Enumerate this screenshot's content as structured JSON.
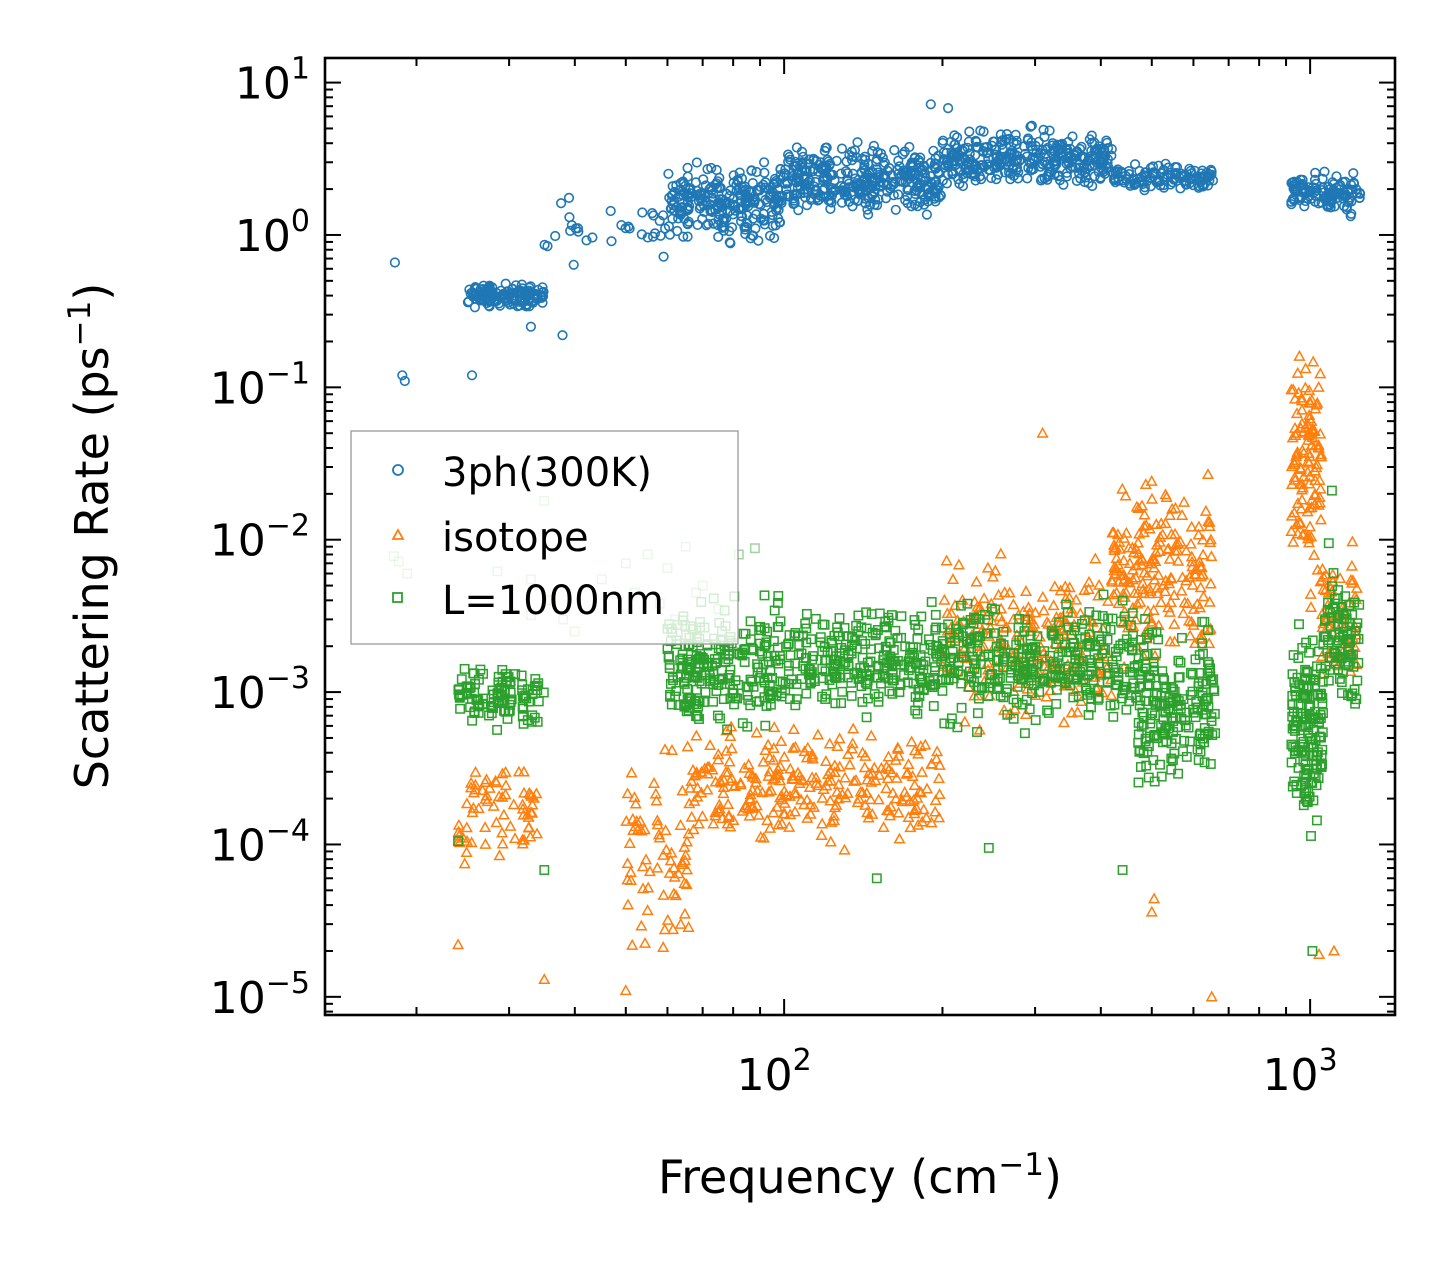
{
  "chart_data": {
    "type": "scatter",
    "title": "",
    "xlabel": "Frequency (cm",
    "xlabel_sup": "−1",
    "xlabel_end": ")",
    "ylabel": "Scattering Rate (ps",
    "ylabel_sup": "−1",
    "ylabel_end": ")",
    "xscale": "log",
    "yscale": "log",
    "xlim": [
      13.4,
      1450
    ],
    "ylim": [
      7.6e-06,
      14.5
    ],
    "x_ticks": [
      {
        "value": 100,
        "base": "10",
        "exp": "2"
      },
      {
        "value": 1000,
        "base": "10",
        "exp": "3"
      }
    ],
    "y_ticks": [
      {
        "value": 10,
        "base": "10",
        "exp": "1"
      },
      {
        "value": 1,
        "base": "10",
        "exp": "0"
      },
      {
        "value": 0.1,
        "base": "10",
        "exp": "−1"
      },
      {
        "value": 0.01,
        "base": "10",
        "exp": "−2"
      },
      {
        "value": 0.001,
        "base": "10",
        "exp": "−3"
      },
      {
        "value": 0.0001,
        "base": "10",
        "exp": "−4"
      },
      {
        "value": 1e-05,
        "base": "10",
        "exp": "−5"
      }
    ],
    "legend_position": "center-left",
    "series": [
      {
        "name": "3ph(300K)",
        "marker": "circle",
        "color": "#1f77b4",
        "clusters": [
          {
            "x": [
              25,
              35
            ],
            "logy": [
              -0.5,
              -0.3
            ],
            "n": 150
          },
          {
            "x": [
              35,
              60
            ],
            "logy": [
              -0.25,
              0.3
            ],
            "n": 30
          },
          {
            "x": [
              60,
              100
            ],
            "logy": [
              -0.1,
              0.55
            ],
            "n": 260
          },
          {
            "x": [
              100,
              200
            ],
            "logy": [
              0.05,
              0.65
            ],
            "n": 360
          },
          {
            "x": [
              200,
              420
            ],
            "logy": [
              0.25,
              0.75
            ],
            "n": 340
          },
          {
            "x": [
              420,
              660
            ],
            "logy": [
              0.25,
              0.5
            ],
            "n": 120
          },
          {
            "x": [
              920,
              1250
            ],
            "logy": [
              0.1,
              0.45
            ],
            "n": 120
          }
        ],
        "points": [
          [
            18.2,
            0.66
          ],
          [
            18.8,
            0.12
          ],
          [
            19,
            0.11
          ],
          [
            25.5,
            0.12
          ],
          [
            37.9,
            0.22
          ],
          [
            39,
            1.75
          ],
          [
            59,
            0.72
          ],
          [
            190,
            7.2
          ],
          [
            205,
            6.8
          ],
          [
            33,
            0.25
          ]
        ]
      },
      {
        "name": "isotope",
        "marker": "triangle",
        "color": "#ff7f0e",
        "clusters": [
          {
            "x": [
              24,
              34
            ],
            "logy": [
              -4.25,
              -3.3
            ],
            "n": 70
          },
          {
            "x": [
              50,
              66
            ],
            "logy": [
              -4.9,
              -3.2
            ],
            "n": 70
          },
          {
            "x": [
              66,
              200
            ],
            "logy": [
              -4.1,
              -3.1
            ],
            "n": 280
          },
          {
            "x": [
              200,
              420
            ],
            "logy": [
              -3.4,
              -2.0
            ],
            "n": 220
          },
          {
            "x": [
              420,
              650
            ],
            "logy": [
              -3.0,
              -1.4
            ],
            "n": 200
          },
          {
            "x": [
              920,
              1050
            ],
            "logy": [
              -2.6,
              -0.4
            ],
            "n": 120
          },
          {
            "x": [
              1050,
              1230
            ],
            "logy": [
              -3.1,
              -1.9
            ],
            "n": 60
          }
        ],
        "points": [
          [
            24,
            2.2e-05
          ],
          [
            35,
            1.3e-05
          ],
          [
            50,
            1.1e-05
          ],
          [
            310,
            0.05
          ],
          [
            500,
            3.6e-05
          ],
          [
            505,
            4.4e-05
          ],
          [
            650,
            1e-05
          ],
          [
            1040,
            1.9e-05
          ],
          [
            1110,
            2e-05
          ]
        ]
      },
      {
        "name": "L=1000nm",
        "marker": "square",
        "color": "#2ca02c",
        "clusters": [
          {
            "x": [
              24,
              35
            ],
            "logy": [
              -3.3,
              -2.75
            ],
            "n": 110
          },
          {
            "x": [
              60,
              90
            ],
            "logy": [
              -3.4,
              -2.3
            ],
            "n": 200
          },
          {
            "x": [
              90,
              470
            ],
            "logy": [
              -3.3,
              -2.3
            ],
            "n": 650
          },
          {
            "x": [
              470,
              660
            ],
            "logy": [
              -3.8,
              -2.4
            ],
            "n": 200
          },
          {
            "x": [
              920,
              1060
            ],
            "logy": [
              -4.1,
              -2.3
            ],
            "n": 160
          },
          {
            "x": [
              1060,
              1240
            ],
            "logy": [
              -3.3,
              -2.0
            ],
            "n": 90
          }
        ],
        "pale_points": [
          [
            18.1,
            0.0078
          ],
          [
            18.5,
            0.0072
          ],
          [
            19.2,
            0.006
          ],
          [
            28.5,
            0.0062
          ],
          [
            30,
            0.0095
          ],
          [
            33,
            0.0055
          ],
          [
            36,
            0.004
          ],
          [
            38,
            0.003
          ],
          [
            40,
            0.0025
          ],
          [
            45,
            0.0055
          ],
          [
            50,
            0.007
          ],
          [
            55,
            0.008
          ],
          [
            60,
            0.0065
          ],
          [
            65,
            0.009
          ],
          [
            70,
            0.005
          ],
          [
            75,
            0.0035
          ],
          [
            82,
            0.008
          ],
          [
            88,
            0.0088
          ],
          [
            58,
            0.0038
          ],
          [
            62,
            0.003
          ],
          [
            35,
            0.018
          ],
          [
            33,
            0.0032
          ],
          [
            52,
            0.0045
          ],
          [
            68,
            0.0045
          ]
        ],
        "points": [
          [
            24,
            0.000105
          ],
          [
            35,
            6.8e-05
          ],
          [
            150,
            6e-05
          ],
          [
            440,
            6.8e-05
          ],
          [
            1010,
            2e-05
          ],
          [
            1100,
            0.021
          ],
          [
            245,
            9.5e-05
          ]
        ]
      }
    ]
  }
}
